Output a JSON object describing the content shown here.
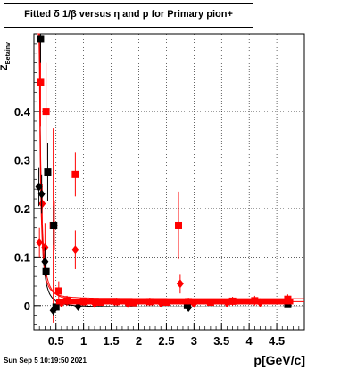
{
  "title": "Fitted δ 1/β versus η and p for Primary pion+",
  "footer": "Sun Sep  5 10:19:50 2021",
  "chart_data": {
    "type": "scatter",
    "title": "Fitted δ 1/β versus η and p for Primary pion+",
    "xlabel": "p[GeV/c]",
    "ylabel": "Z_{Betainv}",
    "xlim": [
      0.1,
      5.0
    ],
    "ylim": [
      -0.05,
      0.56
    ],
    "x_ticks": [
      0.5,
      1,
      1.5,
      2,
      2.5,
      3,
      3.5,
      4,
      4.5
    ],
    "x_tick_labels": [
      "0.5",
      "1",
      "1.5",
      "2",
      "2.5",
      "3",
      "3.5",
      "4",
      "4.5"
    ],
    "y_ticks": [
      0,
      0.1,
      0.2,
      0.3,
      0.4
    ],
    "y_tick_labels": [
      "0",
      "0.1",
      "0.2",
      "0.3",
      "0.4"
    ],
    "grid": true,
    "colors": {
      "red": "#ff0000",
      "black": "#000000"
    },
    "series": [
      {
        "color": "red",
        "marker": "square",
        "points": [
          {
            "x": 0.22,
            "y": 0.46,
            "err": 0.09
          },
          {
            "x": 0.32,
            "y": 0.4,
            "err": 0.1
          },
          {
            "x": 0.45,
            "y": 0.165,
            "err": 0.2
          },
          {
            "x": 0.55,
            "y": 0.03,
            "err": 0.02
          },
          {
            "x": 0.85,
            "y": 0.27,
            "err": 0.045
          },
          {
            "x": 2.72,
            "y": 0.165,
            "err": 0.07
          },
          {
            "x": 0.7,
            "y": 0.01,
            "err": 0.01
          },
          {
            "x": 1.0,
            "y": 0.008,
            "err": 0.008
          },
          {
            "x": 1.3,
            "y": 0.007,
            "err": 0.007
          },
          {
            "x": 1.6,
            "y": 0.008,
            "err": 0.008
          },
          {
            "x": 1.9,
            "y": 0.006,
            "err": 0.006
          },
          {
            "x": 2.2,
            "y": 0.008,
            "err": 0.008
          },
          {
            "x": 2.5,
            "y": 0.007,
            "err": 0.007
          },
          {
            "x": 2.9,
            "y": 0.008,
            "err": 0.008
          },
          {
            "x": 3.3,
            "y": 0.007,
            "err": 0.007
          },
          {
            "x": 3.7,
            "y": 0.009,
            "err": 0.009
          },
          {
            "x": 4.1,
            "y": 0.01,
            "err": 0.01
          },
          {
            "x": 4.7,
            "y": 0.013,
            "err": 0.01
          }
        ]
      },
      {
        "color": "red",
        "marker": "diamond",
        "points": [
          {
            "x": 0.2,
            "y": 0.13,
            "err": 0.03
          },
          {
            "x": 0.25,
            "y": 0.21,
            "err": 0.04
          },
          {
            "x": 0.3,
            "y": 0.12,
            "err": 0.05
          },
          {
            "x": 0.47,
            "y": 0.165,
            "err": 0.05
          },
          {
            "x": 0.85,
            "y": 0.115,
            "err": 0.04
          },
          {
            "x": 2.75,
            "y": 0.045,
            "err": 0.02
          },
          {
            "x": 0.6,
            "y": 0.005,
            "err": 0.004
          },
          {
            "x": 1.2,
            "y": 0.004,
            "err": 0.004
          },
          {
            "x": 1.8,
            "y": 0.004,
            "err": 0.004
          },
          {
            "x": 2.4,
            "y": 0.005,
            "err": 0.004
          },
          {
            "x": 3.0,
            "y": 0.004,
            "err": 0.004
          },
          {
            "x": 3.6,
            "y": 0.005,
            "err": 0.004
          },
          {
            "x": 4.2,
            "y": 0.006,
            "err": 0.005
          },
          {
            "x": 4.7,
            "y": 0.006,
            "err": 0.005
          }
        ]
      },
      {
        "color": "black",
        "marker": "square",
        "points": [
          {
            "x": 0.22,
            "y": 0.55,
            "err": 0.05
          },
          {
            "x": 0.35,
            "y": 0.275,
            "err": 0.06
          },
          {
            "x": 0.32,
            "y": 0.07,
            "err": 0.03
          },
          {
            "x": 0.46,
            "y": 0.165,
            "err": 0.04
          },
          {
            "x": 0.5,
            "y": -0.003,
            "err": 0.004
          },
          {
            "x": 2.88,
            "y": 0.0,
            "err": 0.003
          },
          {
            "x": 4.7,
            "y": 0.002,
            "err": 0.004
          }
        ]
      },
      {
        "color": "black",
        "marker": "diamond",
        "points": [
          {
            "x": 0.19,
            "y": 0.245,
            "err": 0.04
          },
          {
            "x": 0.24,
            "y": 0.23,
            "err": 0.04
          },
          {
            "x": 0.3,
            "y": 0.09,
            "err": 0.03
          },
          {
            "x": 0.45,
            "y": -0.01,
            "err": 0.01
          },
          {
            "x": 0.9,
            "y": -0.002,
            "err": 0.003
          },
          {
            "x": 2.9,
            "y": -0.004,
            "err": 0.003
          }
        ]
      }
    ]
  }
}
